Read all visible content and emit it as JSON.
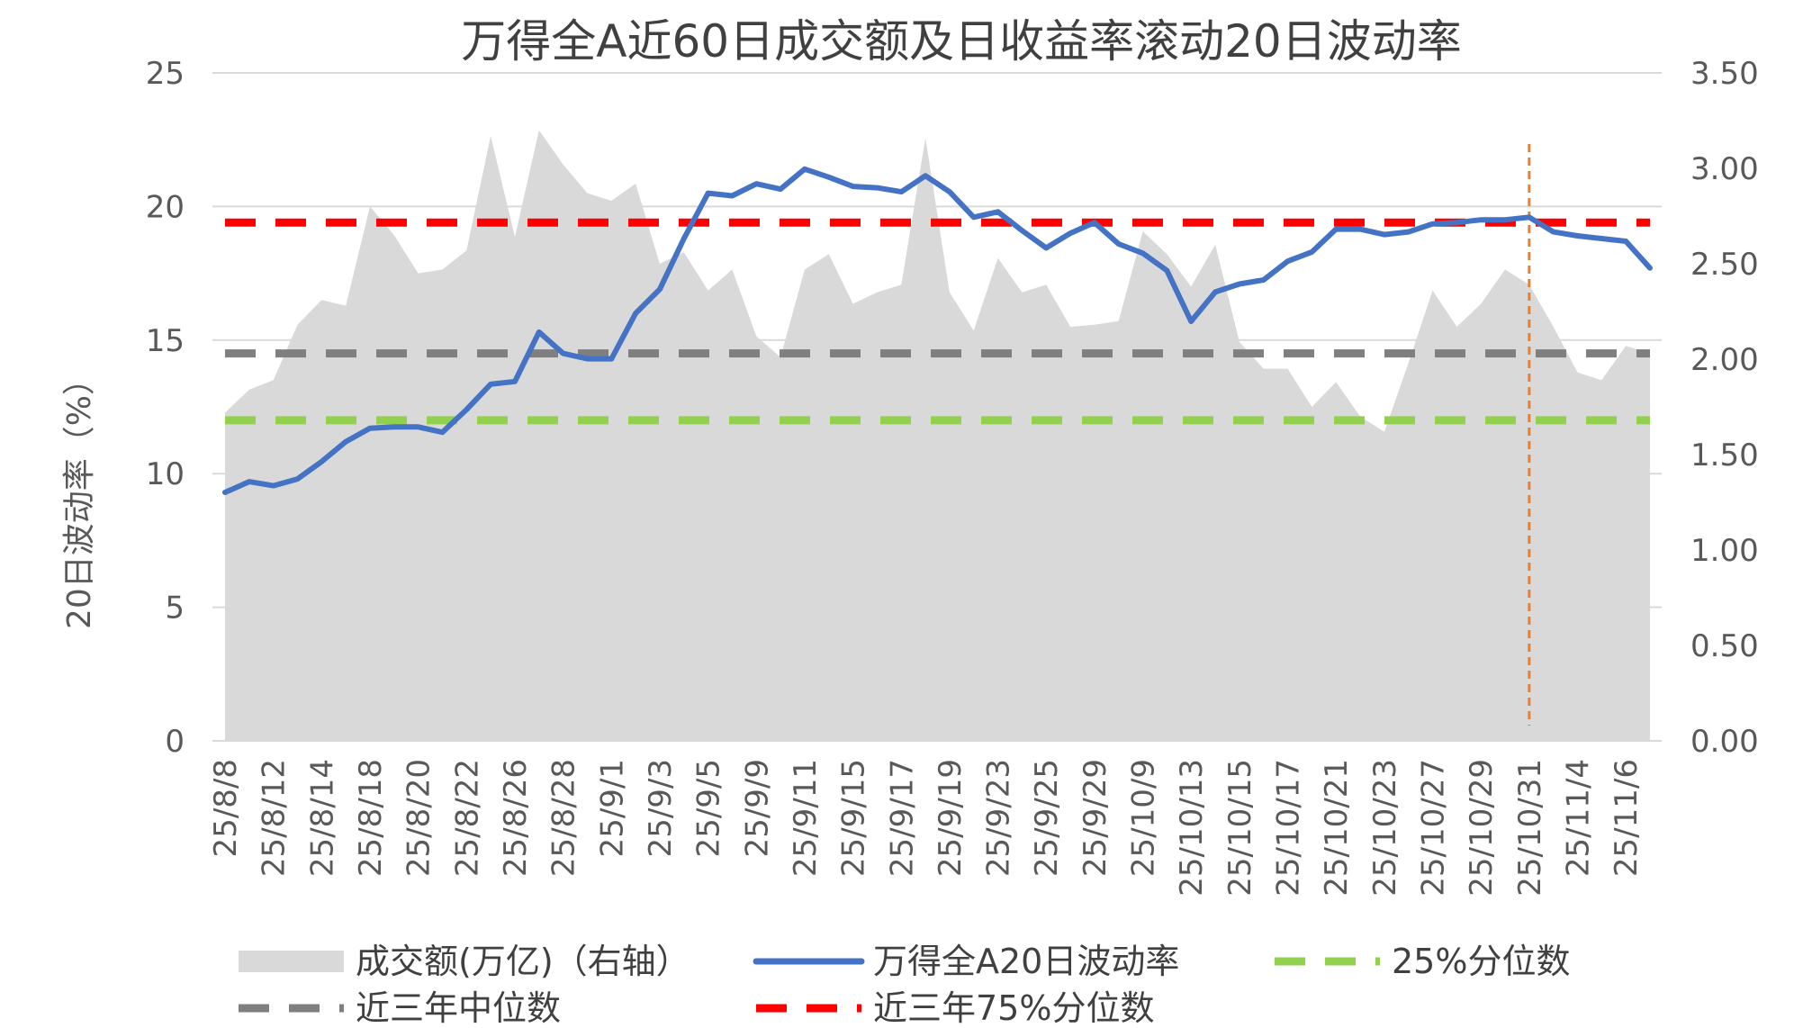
{
  "chart_data": {
    "type": "line",
    "title": "万得全A近60日成交额及日收益率滚动20日波动率",
    "ylabel": "20日波动率（%）",
    "y2label": "",
    "ylim": [
      0,
      25
    ],
    "y2lim": [
      0,
      3.5
    ],
    "yticks": [
      "0",
      "5",
      "10",
      "15",
      "20",
      "25"
    ],
    "y2ticks": [
      "0.00",
      "0.50",
      "1.00",
      "1.50",
      "2.00",
      "2.50",
      "3.00",
      "3.50"
    ],
    "x": [
      "25/8/8",
      "25/8/11",
      "25/8/12",
      "25/8/13",
      "25/8/14",
      "25/8/15",
      "25/8/18",
      "25/8/19",
      "25/8/20",
      "25/8/21",
      "25/8/22",
      "25/8/25",
      "25/8/26",
      "25/8/27",
      "25/8/28",
      "25/8/29",
      "25/9/1",
      "25/9/2",
      "25/9/3",
      "25/9/4",
      "25/9/5",
      "25/9/8",
      "25/9/9",
      "25/9/10",
      "25/9/11",
      "25/9/12",
      "25/9/15",
      "25/9/16",
      "25/9/17",
      "25/9/18",
      "25/9/19",
      "25/9/22",
      "25/9/23",
      "25/9/24",
      "25/9/25",
      "25/9/26",
      "25/9/29",
      "25/9/30",
      "25/10/9",
      "25/10/10",
      "25/10/13",
      "25/10/14",
      "25/10/15",
      "25/10/16",
      "25/10/17",
      "25/10/20",
      "25/10/21",
      "25/10/22",
      "25/10/23",
      "25/10/24",
      "25/10/27",
      "25/10/28",
      "25/10/29",
      "25/10/30",
      "25/10/31",
      "25/11/3",
      "25/11/4",
      "25/11/5",
      "25/11/6",
      "25/11/7"
    ],
    "x_tick_labels": [
      "25/8/8",
      "25/8/12",
      "25/8/14",
      "25/8/18",
      "25/8/20",
      "25/8/22",
      "25/8/26",
      "25/8/28",
      "25/9/1",
      "25/9/3",
      "25/9/5",
      "25/9/9",
      "25/9/11",
      "25/9/15",
      "25/9/17",
      "25/9/19",
      "25/9/23",
      "25/9/25",
      "25/9/29",
      "25/10/9",
      "25/10/13",
      "25/10/15",
      "25/10/17",
      "25/10/21",
      "25/10/23",
      "25/10/27",
      "25/10/29",
      "25/10/31",
      "25/11/4",
      "25/11/6"
    ],
    "series": [
      {
        "name": "成交额(万亿)（右轴）",
        "kind": "area",
        "axis": "right",
        "color": "#d9d9d9",
        "values": [
          1.72,
          1.84,
          1.89,
          2.18,
          2.31,
          2.28,
          2.8,
          2.65,
          2.45,
          2.47,
          2.57,
          3.17,
          2.64,
          3.2,
          3.02,
          2.87,
          2.83,
          2.92,
          2.5,
          2.56,
          2.36,
          2.47,
          2.12,
          2.01,
          2.47,
          2.55,
          2.29,
          2.35,
          2.39,
          3.16,
          2.35,
          2.15,
          2.53,
          2.35,
          2.39,
          2.17,
          2.18,
          2.2,
          2.67,
          2.55,
          2.38,
          2.6,
          2.09,
          1.95,
          1.95,
          1.75,
          1.88,
          1.7,
          1.62,
          1.98,
          2.36,
          2.17,
          2.29,
          2.47,
          2.39,
          2.17,
          1.93,
          1.89,
          2.07,
          2.03
        ]
      },
      {
        "name": "万得全A20日波动率",
        "kind": "line",
        "axis": "left",
        "color": "#4472c4",
        "values": [
          9.3,
          9.7,
          9.55,
          9.8,
          10.45,
          11.2,
          11.7,
          11.75,
          11.75,
          11.55,
          12.4,
          13.35,
          13.45,
          15.3,
          14.5,
          14.3,
          14.3,
          16.0,
          16.9,
          18.8,
          20.5,
          20.4,
          20.85,
          20.65,
          21.4,
          21.1,
          20.75,
          20.7,
          20.55,
          21.15,
          20.55,
          19.6,
          19.8,
          19.1,
          18.45,
          19.0,
          19.4,
          18.6,
          18.25,
          17.6,
          15.7,
          16.8,
          17.1,
          17.25,
          17.95,
          18.3,
          19.15,
          19.15,
          18.95,
          19.05,
          19.35,
          19.4,
          19.5,
          19.5,
          19.6,
          19.05,
          18.9,
          18.8,
          18.7,
          17.7
        ]
      },
      {
        "name": "25%分位数",
        "kind": "reference",
        "axis": "left",
        "color": "#92d050",
        "value": 12.0
      },
      {
        "name": "近三年中位数",
        "kind": "reference",
        "axis": "left",
        "color": "#7f7f7f",
        "value": 14.5
      },
      {
        "name": "近三年75%分位数",
        "kind": "reference",
        "axis": "left",
        "color": "#ff0000",
        "value": 19.4
      }
    ],
    "vertical_marker": {
      "x": "25/10/31",
      "color": "#ed7d31"
    },
    "grid": true,
    "legend_position": "bottom"
  }
}
